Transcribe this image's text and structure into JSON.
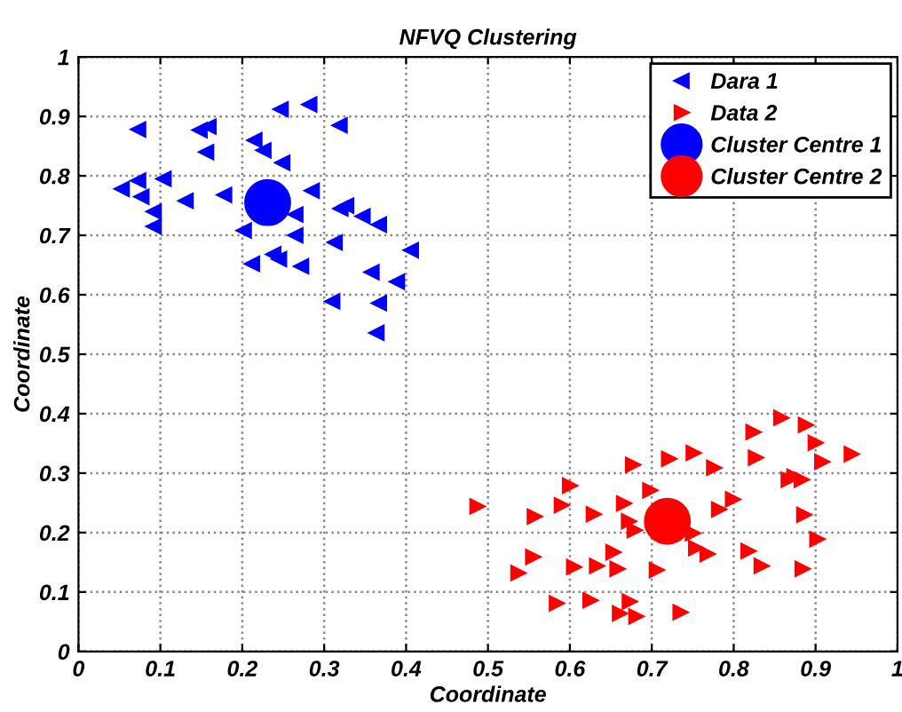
{
  "chart_data": {
    "type": "scatter",
    "title": "NFVQ Clustering",
    "xlabel": "Coordinate",
    "ylabel": "Coordinate",
    "xlim": [
      0,
      1
    ],
    "ylim": [
      0,
      1
    ],
    "xticks": [
      0,
      0.1,
      0.2,
      0.3,
      0.4,
      0.5,
      0.6,
      0.7,
      0.8,
      0.9,
      1
    ],
    "yticks": [
      0,
      0.1,
      0.2,
      0.3,
      0.4,
      0.5,
      0.6,
      0.7,
      0.8,
      0.9,
      1
    ],
    "grid": true,
    "legend": "top right",
    "series": [
      {
        "name": "Dara 1",
        "color": "#0000ff",
        "marker": "triangle-left",
        "x": [
          0.073,
          0.053,
          0.073,
          0.077,
          0.092,
          0.092,
          0.104,
          0.131,
          0.148,
          0.159,
          0.156,
          0.178,
          0.202,
          0.215,
          0.226,
          0.249,
          0.247,
          0.282,
          0.319,
          0.285,
          0.265,
          0.265,
          0.212,
          0.238,
          0.245,
          0.272,
          0.313,
          0.32,
          0.327,
          0.347,
          0.367,
          0.358,
          0.31,
          0.367,
          0.364,
          0.406,
          0.389
        ],
        "values": [
          0.878,
          0.778,
          0.792,
          0.765,
          0.74,
          0.715,
          0.795,
          0.758,
          0.877,
          0.883,
          0.84,
          0.768,
          0.708,
          0.86,
          0.843,
          0.822,
          0.912,
          0.92,
          0.885,
          0.775,
          0.735,
          0.7,
          0.652,
          0.668,
          0.66,
          0.648,
          0.688,
          0.745,
          0.75,
          0.732,
          0.718,
          0.638,
          0.589,
          0.586,
          0.536,
          0.675,
          0.622
        ]
      },
      {
        "name": "Data 2",
        "color": "#ff0000",
        "marker": "triangle-right",
        "x": [
          0.487,
          0.557,
          0.59,
          0.6,
          0.629,
          0.666,
          0.672,
          0.679,
          0.698,
          0.721,
          0.751,
          0.677,
          0.776,
          0.824,
          0.858,
          0.888,
          0.9,
          0.908,
          0.944,
          0.827,
          0.867,
          0.874,
          0.883,
          0.799,
          0.782,
          0.886,
          0.902,
          0.75,
          0.754,
          0.768,
          0.818,
          0.834,
          0.884,
          0.555,
          0.537,
          0.605,
          0.633,
          0.653,
          0.658,
          0.706,
          0.584,
          0.625,
          0.673,
          0.661,
          0.681,
          0.735
        ],
        "values": [
          0.244,
          0.227,
          0.246,
          0.279,
          0.231,
          0.249,
          0.219,
          0.204,
          0.271,
          0.324,
          0.334,
          0.314,
          0.309,
          0.369,
          0.393,
          0.381,
          0.351,
          0.319,
          0.332,
          0.326,
          0.289,
          0.294,
          0.289,
          0.256,
          0.239,
          0.23,
          0.189,
          0.199,
          0.174,
          0.164,
          0.169,
          0.144,
          0.139,
          0.159,
          0.132,
          0.142,
          0.144,
          0.167,
          0.139,
          0.137,
          0.081,
          0.086,
          0.084,
          0.064,
          0.059,
          0.066
        ]
      },
      {
        "name": "Cluster Centre 1",
        "color": "#0000ff",
        "marker": "circle",
        "x": [
          0.231
        ],
        "values": [
          0.755
        ]
      },
      {
        "name": "Cluster Centre 2",
        "color": "#ff0000",
        "marker": "circle",
        "x": [
          0.719
        ],
        "values": [
          0.219
        ]
      }
    ]
  }
}
